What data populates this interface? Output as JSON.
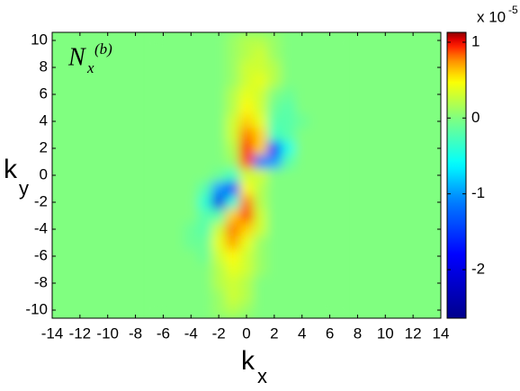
{
  "chart_data": {
    "type": "heatmap",
    "annotation": {
      "base": "N",
      "sub": "x",
      "sup": "(b)"
    },
    "xlabel": {
      "base": "k",
      "sub": "x"
    },
    "ylabel": {
      "base": "k",
      "sub": "y"
    },
    "colorbar_label": "x 10",
    "colorbar_exponent": "-5",
    "x": [
      -6,
      -5,
      -4,
      -3,
      -2,
      -1,
      0,
      1,
      2,
      3,
      4,
      5,
      6
    ],
    "y": [
      10,
      9,
      8,
      7,
      6,
      5,
      4,
      3,
      2,
      1,
      0,
      -1,
      -2,
      -3,
      -4,
      -5,
      -6,
      -7,
      -8,
      -9,
      -10
    ],
    "z": [
      [
        0,
        0,
        0,
        0,
        0,
        0.1,
        0.2,
        0.2,
        0.1,
        0,
        0,
        0,
        0
      ],
      [
        0,
        0,
        0,
        0,
        0,
        0.1,
        0.2,
        0.3,
        0.1,
        0,
        0,
        0,
        0
      ],
      [
        0,
        0,
        0,
        0,
        0,
        0.1,
        0.3,
        0.3,
        0.2,
        0,
        0,
        0,
        0
      ],
      [
        0,
        0,
        0,
        0,
        0,
        0.1,
        0.3,
        0.4,
        0.2,
        0,
        0,
        0,
        0
      ],
      [
        0,
        0,
        0,
        0,
        0,
        0.2,
        0.4,
        0.3,
        0,
        -0.1,
        0,
        0,
        0
      ],
      [
        0,
        0,
        0,
        0,
        0,
        0.2,
        0.5,
        0.3,
        -0.1,
        -0.2,
        0,
        0,
        0
      ],
      [
        0,
        0,
        0,
        0,
        0,
        0.3,
        0.6,
        0.4,
        -0.2,
        -0.2,
        -0.1,
        0,
        0
      ],
      [
        0,
        0,
        0,
        0,
        0,
        0.3,
        0.8,
        0.6,
        -0.3,
        -0.2,
        0,
        0,
        0
      ],
      [
        0,
        0,
        0,
        0,
        0,
        0.2,
        1.0,
        0.6,
        -1.8,
        -0.5,
        0,
        0,
        0
      ],
      [
        0,
        0,
        0,
        0,
        0,
        0.1,
        0.9,
        -1.2,
        -1.0,
        -0.2,
        0,
        0,
        0
      ],
      [
        0,
        0,
        0,
        0,
        -0.1,
        -0.3,
        0.3,
        0.3,
        0,
        0,
        0,
        0,
        0
      ],
      [
        0,
        0,
        0,
        -0.2,
        -1.0,
        -1.6,
        0.5,
        0.2,
        0,
        0,
        0,
        0,
        0
      ],
      [
        0,
        0,
        0,
        -0.4,
        -2.0,
        -0.4,
        0.8,
        0.2,
        0,
        0,
        0,
        0,
        0
      ],
      [
        0,
        0,
        0,
        -0.2,
        -0.2,
        0.6,
        0.9,
        0.3,
        0,
        0,
        0,
        0,
        0
      ],
      [
        0,
        0,
        -0.1,
        -0.2,
        0.3,
        0.8,
        0.6,
        0.3,
        0,
        0,
        0,
        0,
        0
      ],
      [
        0,
        0,
        -0.1,
        -0.1,
        0.4,
        0.7,
        0.4,
        0.1,
        0,
        0,
        0,
        0,
        0
      ],
      [
        0,
        0,
        0,
        -0.1,
        0.3,
        0.5,
        0.3,
        0.1,
        0,
        0,
        0,
        0,
        0
      ],
      [
        0,
        0,
        0,
        0,
        0.2,
        0.4,
        0.3,
        0.1,
        0,
        0,
        0,
        0,
        0
      ],
      [
        0,
        0,
        0,
        0,
        0.2,
        0.3,
        0.2,
        0,
        0,
        0,
        0,
        0,
        0
      ],
      [
        0,
        0,
        0,
        0,
        0.1,
        0.3,
        0.2,
        0,
        0,
        0,
        0,
        0,
        0
      ],
      [
        0,
        0,
        0,
        0,
        0.1,
        0.2,
        0.1,
        0,
        0,
        0,
        0,
        0,
        0
      ]
    ],
    "xlim": [
      -14,
      14
    ],
    "ylim": [
      -10.6,
      10.6
    ],
    "xticks": [
      -14,
      -12,
      -10,
      -8,
      -6,
      -4,
      -2,
      0,
      2,
      4,
      6,
      8,
      10,
      12,
      14
    ],
    "yticks": [
      -10,
      -8,
      -6,
      -4,
      -2,
      0,
      2,
      4,
      6,
      8,
      10
    ],
    "clim": [
      -2.64,
      1.13
    ],
    "cticks": [
      -2,
      -1,
      0,
      1
    ]
  }
}
